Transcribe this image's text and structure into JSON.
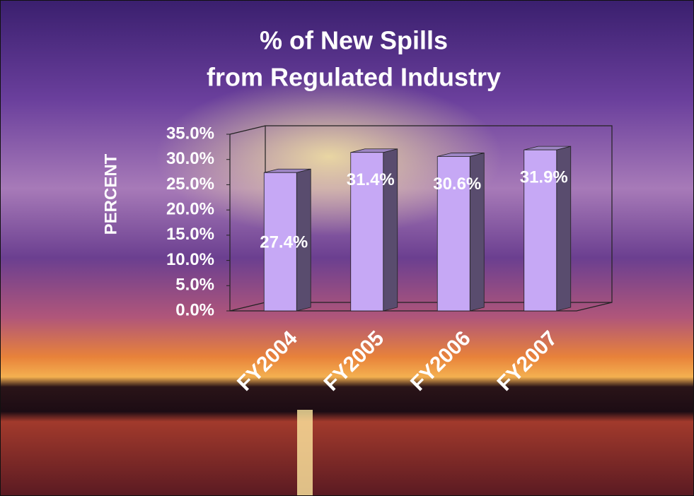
{
  "chart_data": {
    "type": "bar3d",
    "title": "% of New Spills",
    "subtitle": "from Regulated Industry",
    "y_label": "PERCENT",
    "categories": [
      "FY2004",
      "FY2005",
      "FY2006",
      "FY2007"
    ],
    "values": [
      27.4,
      31.4,
      30.6,
      31.9
    ],
    "value_labels": [
      "27.4%",
      "31.4%",
      "30.6%",
      "31.9%"
    ],
    "color": "#c6a8f5",
    "ylim": [
      0,
      35
    ],
    "yticks": [
      {
        "value": 0,
        "label": "0.0%"
      },
      {
        "value": 5,
        "label": "5.0%"
      },
      {
        "value": 10,
        "label": "10.0%"
      },
      {
        "value": 15,
        "label": "15.0%"
      },
      {
        "value": 20,
        "label": "20.0%"
      },
      {
        "value": 25,
        "label": "25.0%"
      },
      {
        "value": 30,
        "label": "30.0%"
      },
      {
        "value": 35,
        "label": "35.0%"
      }
    ],
    "grid": false
  }
}
